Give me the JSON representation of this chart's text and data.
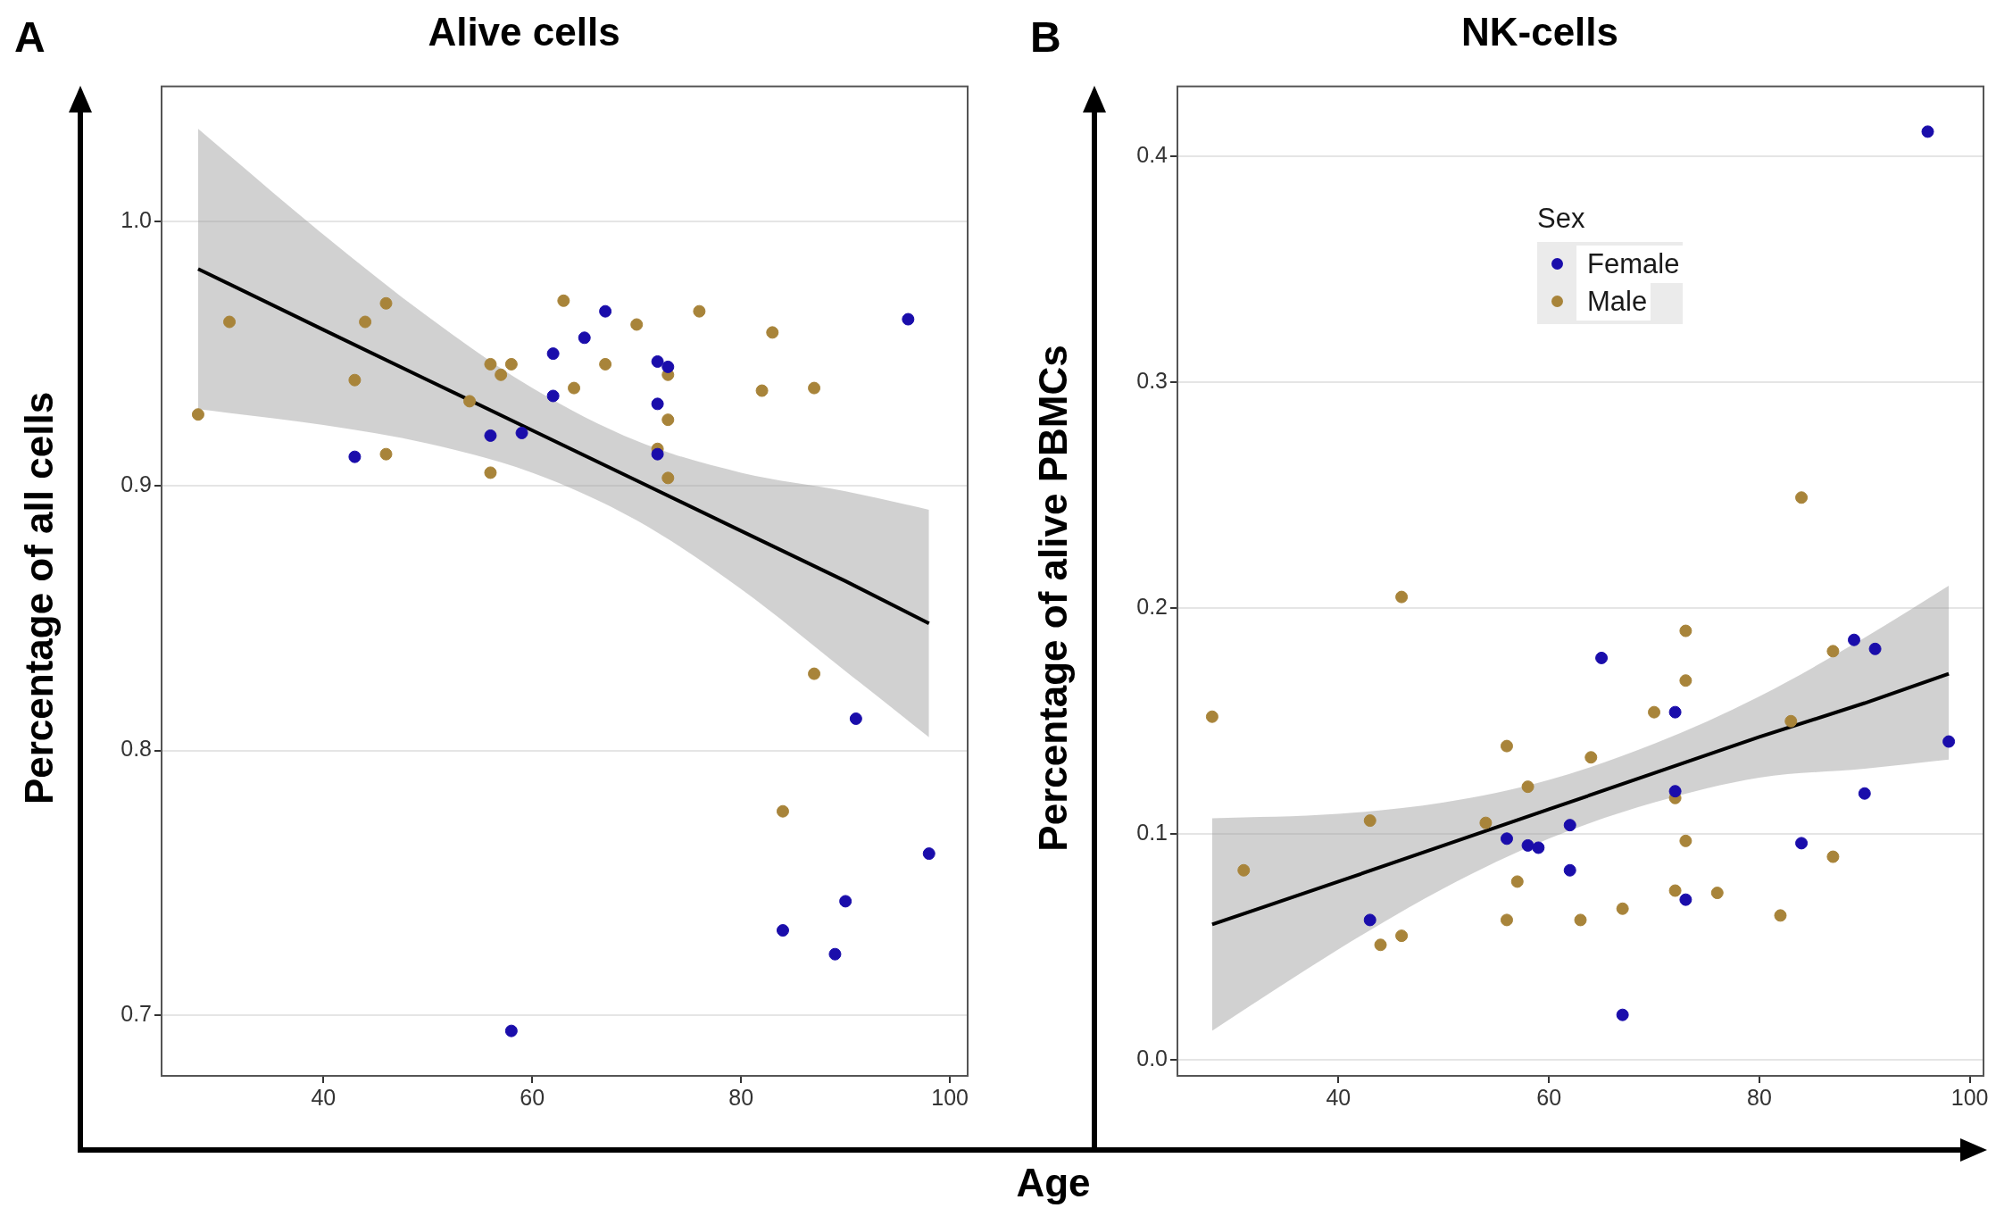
{
  "chart_data": [
    {
      "type": "scatter",
      "title": "Alive cells",
      "annotations": [
        "A"
      ],
      "xlabel": "Age",
      "ylabel": "Percentage of all cells",
      "xlim": [
        24.5,
        101.7
      ],
      "xticks": [
        40,
        60,
        80,
        100
      ],
      "ylim": [
        0.677,
        1.051
      ],
      "yticks": [
        {
          "value": 0.7,
          "label": "0.7"
        },
        {
          "value": 0.8,
          "label": "0.8"
        },
        {
          "value": 0.9,
          "label": "0.9"
        },
        {
          "value": 1.0,
          "label": "1.0"
        }
      ],
      "grid": "y",
      "legend": false,
      "marker": "circle",
      "series": [
        {
          "type": "line",
          "marker": "none",
          "color": "#000000",
          "x": [
            28,
            40,
            50,
            60,
            70,
            80,
            90,
            98
          ],
          "values": [
            0.982,
            0.959,
            0.94,
            0.921,
            0.902,
            0.883,
            0.864,
            0.848
          ],
          "lower": [
            0.929,
            0.923,
            0.916,
            0.905,
            0.887,
            0.861,
            0.83,
            0.805
          ],
          "upper": [
            1.035,
            0.995,
            0.964,
            0.937,
            0.917,
            0.905,
            0.898,
            0.891
          ]
        },
        {
          "color": "#1a0dab",
          "x": [
            43,
            56,
            59,
            62,
            62,
            65,
            67,
            72,
            73,
            72,
            72,
            96,
            91,
            98,
            90,
            84,
            89,
            58
          ],
          "values": [
            0.911,
            0.919,
            0.92,
            0.95,
            0.934,
            0.956,
            0.966,
            0.947,
            0.945,
            0.931,
            0.912,
            0.963,
            0.812,
            0.761,
            0.743,
            0.732,
            0.723,
            0.694
          ]
        },
        {
          "color": "#a8843a",
          "x": [
            28,
            31,
            43,
            44,
            46,
            46,
            54,
            56,
            56,
            57,
            58,
            63,
            64,
            67,
            70,
            73,
            73,
            73,
            72,
            76,
            82,
            83,
            87,
            87,
            84
          ],
          "values": [
            0.927,
            0.962,
            0.94,
            0.962,
            0.969,
            0.912,
            0.932,
            0.946,
            0.905,
            0.942,
            0.946,
            0.97,
            0.937,
            0.946,
            0.961,
            0.942,
            0.925,
            0.903,
            0.914,
            0.966,
            0.936,
            0.958,
            0.937,
            0.829,
            0.777
          ]
        }
      ]
    },
    {
      "type": "scatter",
      "title": "NK-cells",
      "annotations": [
        "B"
      ],
      "ylabel": "Percentage of alive PBMCs",
      "xlim": [
        24.7,
        101.3
      ],
      "xticks": [
        40,
        60,
        80,
        100
      ],
      "ylim": [
        -0.007,
        0.431
      ],
      "yticks": [
        {
          "value": 0,
          "label": "0.0"
        },
        0.1,
        0.2,
        0.3,
        0.4
      ],
      "grid": "y",
      "legend": "top right",
      "legend_title": "Sex",
      "marker": "circle",
      "series": [
        {
          "type": "line",
          "marker": "none",
          "color": "#000000",
          "x": [
            28,
            40,
            50,
            60,
            70,
            80,
            90,
            98
          ],
          "values": [
            0.06,
            0.079,
            0.095,
            0.111,
            0.127,
            0.143,
            0.158,
            0.171
          ],
          "lower": [
            0.013,
            0.049,
            0.076,
            0.098,
            0.114,
            0.125,
            0.129,
            0.133
          ],
          "upper": [
            0.107,
            0.109,
            0.114,
            0.124,
            0.14,
            0.161,
            0.187,
            0.21
          ]
        },
        {
          "name": "Female",
          "color": "#1a0dab",
          "x": [
            43,
            56,
            58,
            59,
            62,
            62,
            65,
            67,
            72,
            72,
            73,
            84,
            89,
            90,
            91,
            96,
            98
          ],
          "values": [
            0.062,
            0.098,
            0.095,
            0.094,
            0.104,
            0.084,
            0.178,
            0.02,
            0.154,
            0.119,
            0.071,
            0.096,
            0.186,
            0.118,
            0.182,
            0.411,
            0.141
          ]
        },
        {
          "name": "Male",
          "color": "#a8843a",
          "x": [
            28,
            31,
            43,
            44,
            46,
            46,
            54,
            56,
            56,
            57,
            58,
            63,
            64,
            67,
            70,
            72,
            72,
            73,
            73,
            73,
            76,
            82,
            83,
            84,
            87,
            87
          ],
          "values": [
            0.152,
            0.084,
            0.106,
            0.051,
            0.205,
            0.055,
            0.105,
            0.139,
            0.062,
            0.079,
            0.121,
            0.062,
            0.134,
            0.067,
            0.154,
            0.116,
            0.075,
            0.19,
            0.168,
            0.097,
            0.074,
            0.064,
            0.15,
            0.249,
            0.181,
            0.09
          ]
        }
      ]
    }
  ]
}
